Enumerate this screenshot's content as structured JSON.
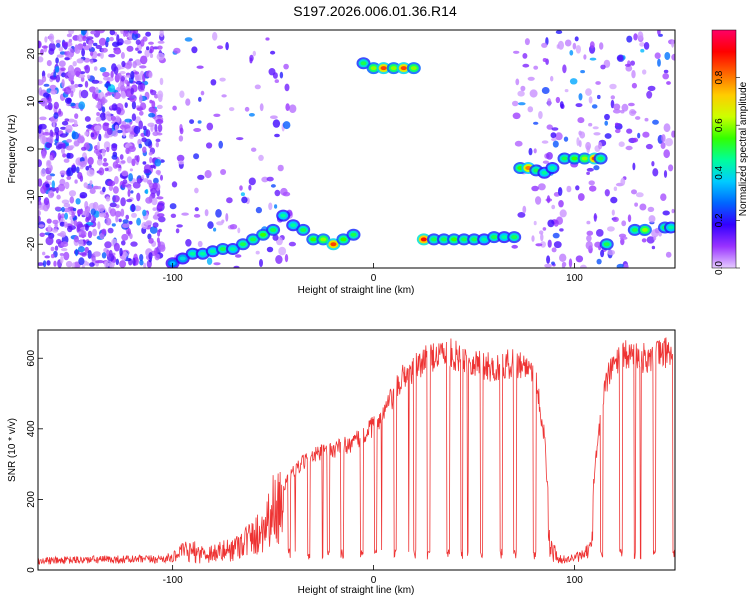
{
  "title": "S197.2026.006.01.36.R14",
  "chart_data": [
    {
      "type": "heatmap",
      "xlabel": "Height of straight line (km)",
      "ylabel": "Frequency (Hz)",
      "xlim": [
        -167,
        150
      ],
      "ylim": [
        -25,
        25
      ],
      "x_ticks": [
        -100,
        0,
        100
      ],
      "y_ticks": [
        -20,
        -10,
        0,
        10,
        20
      ],
      "colorbar": {
        "label": "Normalized spectral amplitude",
        "range": [
          0,
          1
        ],
        "ticks": [
          0.0,
          0.2,
          0.4,
          0.6,
          0.8
        ],
        "colormap": [
          "#e6ccff",
          "#9933ff",
          "#3300ff",
          "#0066ff",
          "#00ccff",
          "#00ff99",
          "#33ff00",
          "#ccff00",
          "#ffcc00",
          "#ff6600",
          "#ff0000",
          "#ff0066"
        ]
      },
      "tracks": [
        {
          "x": [
            -100,
            -95,
            -90,
            -85,
            -80,
            -75,
            -70,
            -65,
            -60,
            -55,
            -50,
            -45,
            -40,
            -35,
            -30,
            -25,
            -20,
            -15,
            -10
          ],
          "y": [
            -24,
            -23,
            -22,
            -22,
            -21.5,
            -21,
            -21,
            -20,
            -19,
            -18,
            -17,
            -14,
            -16,
            -17,
            -19,
            -19,
            -20,
            -19,
            -18
          ],
          "amplitude": [
            0.35,
            0.4,
            0.45,
            0.45,
            0.45,
            0.5,
            0.45,
            0.5,
            0.5,
            0.55,
            0.5,
            0.45,
            0.45,
            0.5,
            0.55,
            0.6,
            0.85,
            0.55,
            0.5
          ]
        },
        {
          "x": [
            -5,
            0,
            5,
            10,
            15,
            20
          ],
          "y": [
            18,
            17,
            17,
            17,
            17,
            17
          ],
          "amplitude": [
            0.5,
            0.6,
            0.85,
            0.6,
            0.85,
            0.6
          ]
        },
        {
          "x": [
            25,
            30,
            35,
            40,
            45,
            50,
            55,
            60,
            65,
            70
          ],
          "y": [
            -19,
            -19,
            -19,
            -19,
            -19,
            -19,
            -19,
            -18.5,
            -18.5,
            -18.5
          ],
          "amplitude": [
            0.9,
            0.5,
            0.5,
            0.55,
            0.5,
            0.5,
            0.45,
            0.5,
            0.45,
            0.5
          ]
        },
        {
          "x": [
            73,
            77,
            81,
            85,
            89
          ],
          "y": [
            -4,
            -4,
            -4.5,
            -5,
            -4
          ],
          "amplitude": [
            0.55,
            0.8,
            0.5,
            0.45,
            0.45
          ]
        },
        {
          "x": [
            95,
            100,
            105,
            110,
            113
          ],
          "y": [
            -2,
            -2,
            -2,
            -2,
            -2
          ],
          "amplitude": [
            0.5,
            0.55,
            0.6,
            0.85,
            0.5
          ]
        },
        {
          "x": [
            116
          ],
          "y": [
            -20
          ],
          "amplitude": [
            0.5
          ]
        },
        {
          "x": [
            130,
            135
          ],
          "y": [
            -17,
            -17
          ],
          "amplitude": [
            0.5,
            0.6
          ]
        },
        {
          "x": [
            145,
            148
          ],
          "y": [
            -16.5,
            -16.5
          ],
          "amplitude": [
            0.5,
            0.45
          ]
        }
      ]
    },
    {
      "type": "line",
      "xlabel": "Height of straight line (km)",
      "ylabel": "SNR (10 * v/v)",
      "xlim": [
        -167,
        150
      ],
      "ylim": [
        0,
        680
      ],
      "x_ticks": [
        -100,
        0,
        100
      ],
      "y_ticks": [
        0,
        200,
        400,
        600
      ],
      "color": "#ee3333",
      "series": [
        {
          "x": [
            -167,
            -150,
            -130,
            -110,
            -100,
            -95,
            -90,
            -85,
            -80,
            -75,
            -70,
            -65,
            -60,
            -55,
            -50,
            -45,
            -40,
            -35,
            -30,
            -25,
            -20,
            -15,
            -10,
            -5,
            0,
            5,
            10,
            15,
            20,
            25,
            30,
            35,
            40,
            45,
            50,
            55,
            60,
            65,
            70,
            75,
            80,
            85,
            88,
            92,
            96,
            100,
            104,
            108,
            110,
            115,
            120,
            125,
            130,
            135,
            140,
            145,
            150
          ],
          "y": [
            25,
            28,
            30,
            30,
            35,
            55,
            70,
            60,
            65,
            70,
            80,
            110,
            120,
            160,
            230,
            250,
            290,
            320,
            340,
            350,
            360,
            370,
            380,
            400,
            430,
            470,
            520,
            580,
            600,
            620,
            640,
            650,
            640,
            630,
            620,
            610,
            600,
            610,
            620,
            610,
            600,
            400,
            80,
            30,
            30,
            35,
            40,
            60,
            300,
            550,
            620,
            640,
            640,
            630,
            640,
            650,
            650
          ]
        }
      ]
    }
  ]
}
